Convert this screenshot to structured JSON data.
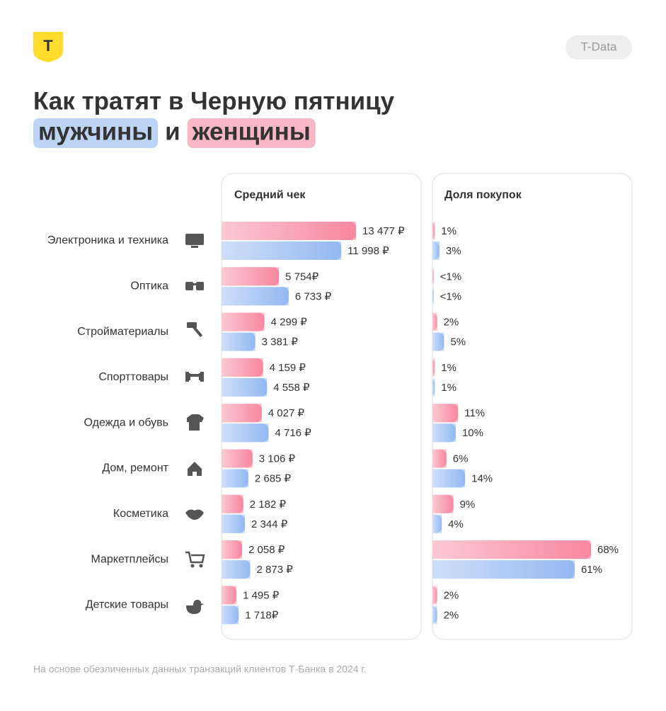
{
  "logo": "Т",
  "badge": "T-Data",
  "title": "Как тратят в Черную пятницу",
  "title_joiner": "и",
  "footnote": "На основе обезличенных данных транзакций клиентов Т-Банка в 2024 г.",
  "chart_data": [
    {
      "type": "bar",
      "title": "Средний чек",
      "categories": [
        "Электроника и техника",
        "Оптика",
        "Стройматериалы",
        "Спорттовары",
        "Одежда и обувь",
        "Дом, ремонт",
        "Косметика",
        "Маркетплейсы",
        "Детские товары"
      ],
      "series": [
        {
          "name": "женщины",
          "color": "#f7879f",
          "values": [
            13477,
            5754,
            4299,
            4159,
            4027,
            3106,
            2182,
            2058,
            1495
          ],
          "value_labels": [
            "13 477 ₽",
            "5 754₽",
            "4 299 ₽",
            "4 159 ₽",
            "4 027 ₽",
            "3 106 ₽",
            "2 182 ₽",
            "2 058 ₽",
            "1 495 ₽"
          ]
        },
        {
          "name": "мужчины",
          "color": "#93b8f2",
          "values": [
            11998,
            6733,
            3381,
            4558,
            4716,
            2685,
            2344,
            2873,
            1718
          ],
          "value_labels": [
            "11 998 ₽",
            "6 733 ₽",
            "3 381 ₽",
            "4 558 ₽",
            "4 716 ₽",
            "2 685 ₽",
            "2 344 ₽",
            "2 873 ₽",
            "1 718₽"
          ]
        }
      ]
    },
    {
      "type": "bar",
      "title": "Доля покупок",
      "series": [
        {
          "name": "женщины",
          "color": "#f7879f",
          "values": [
            1,
            0.5,
            2,
            1,
            11,
            6,
            9,
            68,
            2
          ],
          "value_labels": [
            "1%",
            "<1%",
            "2%",
            "1%",
            "11%",
            "6%",
            "9%",
            "68%",
            "2%"
          ]
        },
        {
          "name": "мужчины",
          "color": "#93b8f2",
          "values": [
            3,
            0.5,
            5,
            1,
            10,
            14,
            4,
            61,
            2
          ],
          "value_labels": [
            "3%",
            "<1%",
            "5%",
            "1%",
            "10%",
            "14%",
            "4%",
            "61%",
            "2%"
          ]
        }
      ]
    }
  ]
}
